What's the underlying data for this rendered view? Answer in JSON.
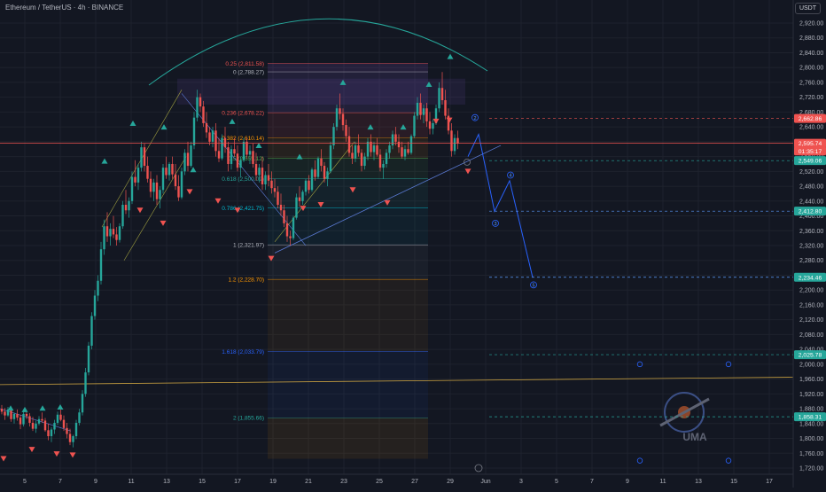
{
  "header": {
    "title": "Ethereum / TetherUS · 4h · BINANCE",
    "currency": "USDT"
  },
  "colors": {
    "background": "#131722",
    "grid": "#1e222d",
    "up": "#26a69a",
    "down": "#ef5350",
    "projection": "#2962ff",
    "arc": "#26a69a",
    "trendline": "#787b86",
    "channel": "#a0a040"
  },
  "chart_data": {
    "type": "candlestick",
    "symbol": "ETHUSDT",
    "interval": "4h",
    "exchange": "BINANCE",
    "ylim": [
      1700,
      2950
    ],
    "x_ticks": [
      "5",
      "7",
      "9",
      "11",
      "13",
      "15",
      "17",
      "19",
      "21",
      "23",
      "25",
      "27",
      "29",
      "Jun",
      "3",
      "5",
      "7",
      "9",
      "11",
      "13",
      "15",
      "17"
    ],
    "y_ticks": [
      "2,920.00",
      "2,880.00",
      "2,840.00",
      "2,800.00",
      "2,760.00",
      "2,720.00",
      "2,680.00",
      "2,640.00",
      "2,600.00",
      "2,560.00",
      "2,520.00",
      "2,480.00",
      "2,440.00",
      "2,400.00",
      "2,360.00",
      "2,320.00",
      "2,280.00",
      "2,240.00",
      "2,200.00",
      "2,160.00",
      "2,120.00",
      "2,080.00",
      "2,040.00",
      "2,000.00",
      "1,960.00",
      "1,920.00",
      "1,880.00",
      "1,840.00",
      "1,800.00",
      "1,760.00",
      "1,720.00"
    ],
    "fibonacci": [
      {
        "ratio": "0.25",
        "price": 2811.58,
        "label": "0.25 (2,811.58)",
        "color": "#ef5350"
      },
      {
        "ratio": "0",
        "price": 2788.27,
        "label": "0 (2,788.27)",
        "color": "#b2b5be"
      },
      {
        "ratio": "0.236",
        "price": 2678.22,
        "label": "0.236 (2,678.22)",
        "color": "#ef5350"
      },
      {
        "ratio": "0.382",
        "price": 2610.14,
        "label": "0.382 (2,610.14)",
        "color": "#ff9800"
      },
      {
        "ratio": "0.5",
        "price": 2555.12,
        "label": "0.5 (2,555.12)",
        "color": "#4caf50"
      },
      {
        "ratio": "0.618",
        "price": 2500.09,
        "label": "0.618 (2,500.09)",
        "color": "#26a69a"
      },
      {
        "ratio": "0.786",
        "price": 2421.75,
        "label": "0.786 (2,421.75)",
        "color": "#00bcd4"
      },
      {
        "ratio": "1",
        "price": 2321.97,
        "label": "1 (2,321.97)",
        "color": "#b2b5be"
      },
      {
        "ratio": "1.2",
        "price": 2228.7,
        "label": "1.2 (2,228.70)",
        "color": "#ff9800"
      },
      {
        "ratio": "1.618",
        "price": 2033.79,
        "label": "1.618 (2,033.79)",
        "color": "#2962ff"
      },
      {
        "ratio": "2",
        "price": 1855.66,
        "label": "2 (1,855.66)",
        "color": "#26a69a"
      }
    ],
    "price_tags": [
      {
        "price": 2662.86,
        "label": "2,662.86",
        "bg": "#ef5350",
        "style": "dashed-red"
      },
      {
        "price": 2595.74,
        "label": "2,595.74",
        "bg": "#ef5350",
        "style": "solid"
      },
      {
        "price": 2575.12,
        "label": "01:35:17",
        "bg": "#ef5350",
        "style": "none"
      },
      {
        "price": 2549.06,
        "label": "2,549.06",
        "bg": "#26a69a",
        "style": "dashed-green"
      },
      {
        "price": 2412.8,
        "label": "2,412.80",
        "bg": "#26a69a",
        "style": "dashed-blue"
      },
      {
        "price": 2234.46,
        "label": "2,234.46",
        "bg": "#26a69a",
        "style": "dashed-blue"
      },
      {
        "price": 2025.78,
        "label": "2,025.78",
        "bg": "#26a69a",
        "style": "dashed-teal"
      },
      {
        "price": 1858.31,
        "label": "1,858.31",
        "bg": "#26a69a",
        "style": "dashed-teal"
      }
    ],
    "wave_labels": [
      "2",
      "3",
      "4",
      "5"
    ],
    "projection_path": [
      [
        5.4,
        2620
      ],
      [
        5.9,
        2550
      ],
      [
        6.2,
        2420
      ],
      [
        6.5,
        2495
      ],
      [
        7.0,
        2230
      ]
    ],
    "watermark": "UMA",
    "alert_icon": "alarm-icon",
    "candles": [
      [
        0,
        1880,
        1890,
        1865,
        1872
      ],
      [
        1,
        1872,
        1882,
        1850,
        1862
      ],
      [
        2,
        1862,
        1885,
        1858,
        1878
      ],
      [
        3,
        1878,
        1880,
        1845,
        1852
      ],
      [
        4,
        1852,
        1870,
        1840,
        1866
      ],
      [
        5,
        1866,
        1878,
        1848,
        1856
      ],
      [
        6,
        1856,
        1864,
        1825,
        1838
      ],
      [
        7,
        1838,
        1872,
        1832,
        1866
      ],
      [
        8,
        1866,
        1875,
        1852,
        1860
      ],
      [
        9,
        1860,
        1868,
        1832,
        1842
      ],
      [
        10,
        1842,
        1858,
        1820,
        1826
      ],
      [
        11,
        1826,
        1848,
        1815,
        1840
      ],
      [
        12,
        1840,
        1860,
        1835,
        1852
      ],
      [
        13,
        1852,
        1870,
        1842,
        1848
      ],
      [
        14,
        1848,
        1855,
        1818,
        1822
      ],
      [
        15,
        1822,
        1840,
        1795,
        1806
      ],
      [
        16,
        1806,
        1830,
        1790,
        1824
      ],
      [
        17,
        1824,
        1850,
        1812,
        1842
      ],
      [
        18,
        1842,
        1872,
        1836,
        1864
      ],
      [
        19,
        1864,
        1880,
        1846,
        1850
      ],
      [
        20,
        1850,
        1862,
        1820,
        1828
      ],
      [
        21,
        1828,
        1842,
        1800,
        1812
      ],
      [
        22,
        1812,
        1826,
        1782,
        1790
      ],
      [
        23,
        1790,
        1810,
        1776,
        1806
      ],
      [
        24,
        1806,
        1850,
        1798,
        1842
      ],
      [
        25,
        1842,
        1880,
        1835,
        1870
      ],
      [
        26,
        1870,
        1930,
        1862,
        1920
      ],
      [
        27,
        1920,
        1990,
        1912,
        1978
      ],
      [
        28,
        1978,
        2060,
        1970,
        2050
      ],
      [
        29,
        2050,
        2140,
        2040,
        2130
      ],
      [
        30,
        2130,
        2200,
        2120,
        2185
      ],
      [
        31,
        2185,
        2240,
        2170,
        2225
      ],
      [
        32,
        2225,
        2330,
        2215,
        2310
      ],
      [
        33,
        2310,
        2390,
        2295,
        2372
      ],
      [
        34,
        2372,
        2410,
        2330,
        2345
      ],
      [
        35,
        2345,
        2380,
        2320,
        2365
      ],
      [
        36,
        2365,
        2400,
        2340,
        2350
      ],
      [
        37,
        2350,
        2370,
        2320,
        2335
      ],
      [
        38,
        2335,
        2380,
        2328,
        2372
      ],
      [
        39,
        2372,
        2440,
        2365,
        2430
      ],
      [
        40,
        2430,
        2470,
        2405,
        2415
      ],
      [
        41,
        2415,
        2450,
        2395,
        2440
      ],
      [
        42,
        2440,
        2520,
        2432,
        2505
      ],
      [
        43,
        2505,
        2550,
        2480,
        2490
      ],
      [
        44,
        2490,
        2540,
        2470,
        2530
      ],
      [
        45,
        2530,
        2600,
        2520,
        2585
      ],
      [
        46,
        2585,
        2595,
        2520,
        2535
      ],
      [
        47,
        2535,
        2560,
        2490,
        2500
      ],
      [
        48,
        2500,
        2520,
        2450,
        2465
      ],
      [
        49,
        2465,
        2500,
        2440,
        2490
      ],
      [
        50,
        2490,
        2510,
        2430,
        2445
      ],
      [
        51,
        2445,
        2480,
        2420,
        2470
      ],
      [
        52,
        2470,
        2540,
        2460,
        2530
      ],
      [
        53,
        2530,
        2560,
        2500,
        2510
      ],
      [
        54,
        2510,
        2545,
        2495,
        2540
      ],
      [
        55,
        2540,
        2560,
        2500,
        2512
      ],
      [
        56,
        2512,
        2540,
        2470,
        2480
      ],
      [
        57,
        2480,
        2510,
        2440,
        2450
      ],
      [
        58,
        2450,
        2530,
        2445,
        2520
      ],
      [
        59,
        2520,
        2580,
        2510,
        2570
      ],
      [
        60,
        2570,
        2600,
        2520,
        2535
      ],
      [
        61,
        2535,
        2600,
        2530,
        2590
      ],
      [
        62,
        2590,
        2680,
        2580,
        2665
      ],
      [
        63,
        2665,
        2740,
        2655,
        2720
      ],
      [
        64,
        2720,
        2730,
        2680,
        2695
      ],
      [
        65,
        2695,
        2710,
        2640,
        2650
      ],
      [
        66,
        2650,
        2680,
        2610,
        2625
      ],
      [
        67,
        2625,
        2640,
        2590,
        2600
      ],
      [
        68,
        2600,
        2640,
        2585,
        2630
      ],
      [
        69,
        2630,
        2650,
        2560,
        2575
      ],
      [
        70,
        2575,
        2610,
        2545,
        2555
      ],
      [
        71,
        2555,
        2620,
        2550,
        2610
      ],
      [
        72,
        2610,
        2640,
        2570,
        2585
      ],
      [
        73,
        2585,
        2600,
        2520,
        2540
      ],
      [
        74,
        2540,
        2590,
        2525,
        2580
      ],
      [
        75,
        2580,
        2610,
        2560,
        2568
      ],
      [
        76,
        2568,
        2590,
        2520,
        2530
      ],
      [
        77,
        2530,
        2560,
        2505,
        2550
      ],
      [
        78,
        2550,
        2610,
        2545,
        2600
      ],
      [
        79,
        2600,
        2610,
        2555,
        2565
      ],
      [
        80,
        2565,
        2590,
        2540,
        2575
      ],
      [
        81,
        2575,
        2595,
        2530,
        2540
      ],
      [
        82,
        2540,
        2570,
        2495,
        2510
      ],
      [
        83,
        2510,
        2540,
        2490,
        2530
      ],
      [
        84,
        2530,
        2560,
        2470,
        2485
      ],
      [
        85,
        2485,
        2520,
        2470,
        2510
      ],
      [
        86,
        2510,
        2540,
        2480,
        2495
      ],
      [
        87,
        2495,
        2520,
        2460,
        2475
      ],
      [
        88,
        2475,
        2500,
        2450,
        2465
      ],
      [
        89,
        2465,
        2480,
        2420,
        2430
      ],
      [
        90,
        2430,
        2460,
        2400,
        2415
      ],
      [
        91,
        2415,
        2430,
        2370,
        2380
      ],
      [
        92,
        2380,
        2400,
        2330,
        2345
      ],
      [
        93,
        2345,
        2360,
        2320,
        2340
      ],
      [
        94,
        2340,
        2400,
        2335,
        2395
      ],
      [
        95,
        2395,
        2460,
        2390,
        2450
      ],
      [
        96,
        2450,
        2480,
        2425,
        2440
      ],
      [
        97,
        2440,
        2470,
        2430,
        2465
      ],
      [
        98,
        2465,
        2500,
        2455,
        2495
      ],
      [
        99,
        2495,
        2510,
        2460,
        2470
      ],
      [
        100,
        2470,
        2530,
        2465,
        2525
      ],
      [
        101,
        2525,
        2550,
        2495,
        2505
      ],
      [
        102,
        2505,
        2560,
        2500,
        2555
      ],
      [
        103,
        2555,
        2580,
        2520,
        2535
      ],
      [
        104,
        2535,
        2545,
        2490,
        2500
      ],
      [
        105,
        2500,
        2530,
        2480,
        2520
      ],
      [
        106,
        2520,
        2600,
        2515,
        2590
      ],
      [
        107,
        2590,
        2650,
        2580,
        2640
      ],
      [
        108,
        2640,
        2700,
        2630,
        2690
      ],
      [
        109,
        2690,
        2730,
        2660,
        2675
      ],
      [
        110,
        2675,
        2690,
        2630,
        2645
      ],
      [
        111,
        2645,
        2660,
        2600,
        2615
      ],
      [
        112,
        2615,
        2640,
        2560,
        2570
      ],
      [
        113,
        2570,
        2590,
        2540,
        2555
      ],
      [
        114,
        2555,
        2600,
        2545,
        2590
      ],
      [
        115,
        2590,
        2620,
        2560,
        2570
      ],
      [
        116,
        2570,
        2580,
        2520,
        2535
      ],
      [
        117,
        2535,
        2570,
        2525,
        2560
      ],
      [
        118,
        2560,
        2610,
        2550,
        2600
      ],
      [
        119,
        2600,
        2620,
        2560,
        2572
      ],
      [
        120,
        2572,
        2600,
        2550,
        2590
      ],
      [
        121,
        2590,
        2610,
        2560,
        2565
      ],
      [
        122,
        2565,
        2580,
        2520,
        2530
      ],
      [
        123,
        2530,
        2550,
        2500,
        2540
      ],
      [
        124,
        2540,
        2580,
        2530,
        2570
      ],
      [
        125,
        2570,
        2600,
        2555,
        2590
      ],
      [
        126,
        2590,
        2630,
        2580,
        2620
      ],
      [
        127,
        2620,
        2640,
        2590,
        2600
      ],
      [
        128,
        2600,
        2620,
        2570,
        2585
      ],
      [
        129,
        2585,
        2600,
        2555,
        2560
      ],
      [
        130,
        2560,
        2590,
        2550,
        2580
      ],
      [
        131,
        2580,
        2600,
        2565,
        2570
      ],
      [
        132,
        2570,
        2620,
        2565,
        2615
      ],
      [
        133,
        2615,
        2680,
        2610,
        2670
      ],
      [
        134,
        2670,
        2720,
        2660,
        2705
      ],
      [
        135,
        2705,
        2730,
        2660,
        2672
      ],
      [
        136,
        2672,
        2700,
        2650,
        2690
      ],
      [
        137,
        2690,
        2705,
        2640,
        2655
      ],
      [
        138,
        2655,
        2680,
        2620,
        2635
      ],
      [
        139,
        2635,
        2660,
        2620,
        2650
      ],
      [
        140,
        2650,
        2700,
        2645,
        2690
      ],
      [
        141,
        2690,
        2760,
        2680,
        2745
      ],
      [
        142,
        2745,
        2788,
        2700,
        2712
      ],
      [
        143,
        2712,
        2740,
        2660,
        2670
      ],
      [
        144,
        2670,
        2690,
        2620,
        2630
      ],
      [
        145,
        2630,
        2650,
        2560,
        2575
      ],
      [
        146,
        2575,
        2620,
        2565,
        2610
      ],
      [
        147,
        2610,
        2630,
        2580,
        2596
      ]
    ]
  }
}
